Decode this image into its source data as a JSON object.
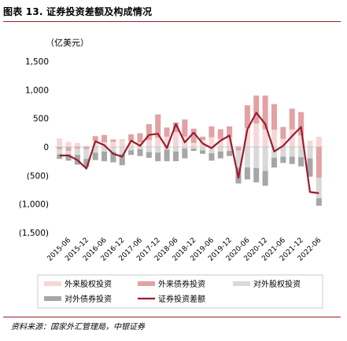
{
  "figure": {
    "title": "图表 13. 证券投资差额及构成情况",
    "source": "资料来源：国家外汇管理局，中银证券"
  },
  "chart_data": {
    "type": "bar",
    "unit_label": "（亿美元）",
    "ylim": [
      -1500,
      1500
    ],
    "y_ticks": [
      1500,
      1000,
      500,
      0,
      -500,
      -1000,
      -1500
    ],
    "y_tick_labels": [
      "1,500",
      "1,000",
      "500",
      "0",
      "(500)",
      "(1,000)",
      "(1,500)"
    ],
    "x": [
      "2015-03",
      "2015-06",
      "2015-09",
      "2015-12",
      "2016-03",
      "2016-06",
      "2016-09",
      "2016-12",
      "2017-03",
      "2017-06",
      "2017-09",
      "2017-12",
      "2018-03",
      "2018-06",
      "2018-09",
      "2018-12",
      "2019-03",
      "2019-06",
      "2019-09",
      "2019-12",
      "2020-03",
      "2020-06",
      "2020-09",
      "2020-12",
      "2021-03",
      "2021-06",
      "2021-09",
      "2021-12",
      "2022-03",
      "2022-06"
    ],
    "x_tick_labels": [
      "2015-06",
      "2015-12",
      "2016-06",
      "2016-12",
      "2017-06",
      "2017-12",
      "2018-06",
      "2018-12",
      "2019-06",
      "2019-12",
      "2020-06",
      "2020-12",
      "2021-06",
      "2021-12",
      "2022-06"
    ],
    "series": [
      {
        "name": "外来股权投资",
        "kind": "bar",
        "color": "#f6d7d8",
        "values": [
          150,
          90,
          70,
          20,
          110,
          80,
          90,
          120,
          110,
          80,
          120,
          160,
          180,
          260,
          180,
          70,
          120,
          170,
          140,
          170,
          20,
          330,
          410,
          310,
          300,
          140,
          310,
          200,
          110,
          180
        ]
      },
      {
        "name": "外来债券投资",
        "kind": "bar",
        "color": "#e3a1a4",
        "values": [
          -40,
          -70,
          -30,
          -40,
          80,
          130,
          40,
          10,
          110,
          160,
          280,
          410,
          160,
          170,
          300,
          250,
          60,
          190,
          170,
          190,
          -60,
          400,
          490,
          590,
          450,
          210,
          360,
          410,
          -10,
          -540
        ]
      },
      {
        "name": "对外股权投资",
        "kind": "bar",
        "color": "#d9d9d9",
        "values": [
          -90,
          -60,
          -110,
          -170,
          -100,
          -80,
          -90,
          -130,
          -60,
          -40,
          -90,
          -100,
          -50,
          -80,
          -30,
          -30,
          -60,
          -110,
          -80,
          -70,
          -300,
          -360,
          -370,
          -420,
          -190,
          -170,
          -170,
          -180,
          -190,
          -360
        ]
      },
      {
        "name": "对外债券投资",
        "kind": "bar",
        "color": "#a6a6a6",
        "values": [
          -80,
          -110,
          -170,
          -140,
          -130,
          -170,
          -180,
          -190,
          -80,
          -120,
          -100,
          -150,
          -200,
          -170,
          -170,
          -40,
          -60,
          -130,
          -120,
          -90,
          -280,
          -210,
          -250,
          -260,
          -170,
          -110,
          -130,
          -160,
          -320,
          -130
        ]
      },
      {
        "name": "证券投资差额",
        "kind": "line",
        "color": "#9b1c2c",
        "values": [
          -150,
          -150,
          -230,
          -380,
          100,
          30,
          -120,
          -170,
          110,
          20,
          210,
          230,
          -20,
          400,
          80,
          250,
          60,
          -20,
          110,
          200,
          -540,
          310,
          600,
          400,
          -80,
          20,
          190,
          350,
          -790,
          -810
        ]
      }
    ],
    "legend_position": "bottom",
    "grid": false
  }
}
